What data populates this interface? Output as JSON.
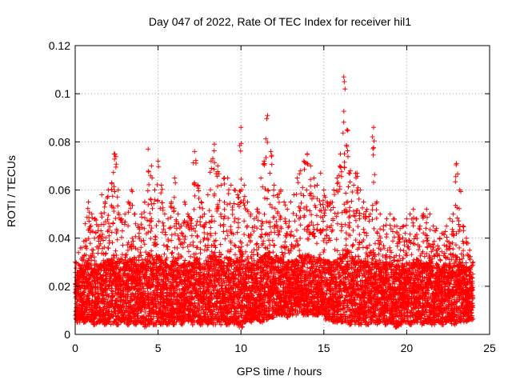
{
  "chart_data": {
    "type": "scatter",
    "title": "Day 047 of 2022, Rate Of TEC Index for receiver hil1",
    "xlabel": "GPS time / hours",
    "ylabel": "ROTI / TECUs",
    "xlim": [
      0,
      25
    ],
    "ylim": [
      0,
      0.12
    ],
    "x_ticks": [
      0,
      5,
      10,
      15,
      20,
      25
    ],
    "x_tick_labels": [
      "0",
      "5",
      "10",
      "15",
      "20",
      "25"
    ],
    "y_ticks": [
      0,
      0.02,
      0.04,
      0.06,
      0.08,
      0.1,
      0.12
    ],
    "y_tick_labels": [
      "0",
      "0.02",
      "0.04",
      "0.06",
      "0.08",
      "0.1",
      "0.12"
    ],
    "grid": true,
    "marker": "+",
    "series": [
      {
        "name": "ROTI",
        "color": "#ff0000",
        "x": [
          0.0,
          0.2,
          0.4,
          0.6,
          0.8,
          1.0,
          1.2,
          1.4,
          1.6,
          1.8,
          2.0,
          2.2,
          2.4,
          2.6,
          2.8,
          3.0,
          3.2,
          3.4,
          3.6,
          3.8,
          4.0,
          4.2,
          4.4,
          4.6,
          4.8,
          5.0,
          5.2,
          5.4,
          5.6,
          5.8,
          6.0,
          6.2,
          6.4,
          6.6,
          6.8,
          7.0,
          7.2,
          7.4,
          7.6,
          7.8,
          8.0,
          8.2,
          8.4,
          8.6,
          8.8,
          9.0,
          9.2,
          9.4,
          9.6,
          9.8,
          10.0,
          10.2,
          10.4,
          10.6,
          10.8,
          11.0,
          11.2,
          11.4,
          11.6,
          11.8,
          12.0,
          12.2,
          12.4,
          12.6,
          12.8,
          13.0,
          13.2,
          13.4,
          13.6,
          13.8,
          14.0,
          14.2,
          14.4,
          14.6,
          14.8,
          15.0,
          15.2,
          15.4,
          15.6,
          15.8,
          16.0,
          16.2,
          16.4,
          16.6,
          16.8,
          17.0,
          17.2,
          17.4,
          17.6,
          17.8,
          18.0,
          18.2,
          18.4,
          18.6,
          18.8,
          19.0,
          19.2,
          19.4,
          19.6,
          19.8,
          20.0,
          20.2,
          20.4,
          20.6,
          20.8,
          21.0,
          21.2,
          21.4,
          21.6,
          21.8,
          22.0,
          22.2,
          22.4,
          22.6,
          22.8,
          23.0,
          23.2,
          23.4,
          23.6,
          23.8,
          24.0
        ],
        "envelope_max": [
          0.03,
          0.034,
          0.036,
          0.046,
          0.055,
          0.05,
          0.048,
          0.045,
          0.058,
          0.055,
          0.06,
          0.063,
          0.075,
          0.06,
          0.048,
          0.05,
          0.055,
          0.06,
          0.05,
          0.045,
          0.05,
          0.055,
          0.077,
          0.07,
          0.06,
          0.072,
          0.062,
          0.05,
          0.048,
          0.055,
          0.065,
          0.05,
          0.045,
          0.055,
          0.05,
          0.048,
          0.076,
          0.062,
          0.055,
          0.05,
          0.058,
          0.072,
          0.079,
          0.07,
          0.062,
          0.065,
          0.065,
          0.062,
          0.06,
          0.058,
          0.086,
          0.062,
          0.055,
          0.05,
          0.048,
          0.052,
          0.065,
          0.072,
          0.091,
          0.076,
          0.062,
          0.058,
          0.06,
          0.055,
          0.052,
          0.055,
          0.058,
          0.065,
          0.068,
          0.072,
          0.075,
          0.07,
          0.065,
          0.062,
          0.067,
          0.06,
          0.055,
          0.055,
          0.06,
          0.065,
          0.075,
          0.107,
          0.085,
          0.068,
          0.062,
          0.067,
          0.06,
          0.055,
          0.052,
          0.05,
          0.086,
          0.055,
          0.05,
          0.045,
          0.048,
          0.05,
          0.048,
          0.045,
          0.044,
          0.045,
          0.048,
          0.05,
          0.052,
          0.048,
          0.045,
          0.05,
          0.052,
          0.05,
          0.045,
          0.044,
          0.04,
          0.042,
          0.045,
          0.048,
          0.05,
          0.071,
          0.06,
          0.045,
          0.04,
          0.035,
          0.03
        ],
        "envelope_min": [
          0.006,
          0.005,
          0.006,
          0.005,
          0.006,
          0.005,
          0.004,
          0.005,
          0.005,
          0.004,
          0.005,
          0.004,
          0.005,
          0.004,
          0.005,
          0.005,
          0.004,
          0.005,
          0.004,
          0.005,
          0.004,
          0.003,
          0.004,
          0.005,
          0.004,
          0.005,
          0.004,
          0.005,
          0.004,
          0.005,
          0.004,
          0.005,
          0.004,
          0.005,
          0.005,
          0.004,
          0.005,
          0.005,
          0.004,
          0.005,
          0.004,
          0.005,
          0.004,
          0.005,
          0.004,
          0.005,
          0.004,
          0.005,
          0.004,
          0.004,
          0.003,
          0.005,
          0.006,
          0.005,
          0.006,
          0.006,
          0.005,
          0.006,
          0.006,
          0.007,
          0.007,
          0.008,
          0.008,
          0.008,
          0.007,
          0.008,
          0.008,
          0.008,
          0.009,
          0.008,
          0.008,
          0.009,
          0.008,
          0.008,
          0.009,
          0.008,
          0.006,
          0.006,
          0.005,
          0.005,
          0.005,
          0.005,
          0.004,
          0.004,
          0.004,
          0.005,
          0.004,
          0.005,
          0.004,
          0.005,
          0.005,
          0.004,
          0.005,
          0.005,
          0.004,
          0.005,
          0.004,
          0.003,
          0.004,
          0.005,
          0.005,
          0.004,
          0.005,
          0.005,
          0.005,
          0.004,
          0.005,
          0.005,
          0.004,
          0.005,
          0.005,
          0.004,
          0.005,
          0.005,
          0.004,
          0.004,
          0.005,
          0.005,
          0.005,
          0.006,
          0.006
        ],
        "typical_level": 0.018
      }
    ]
  }
}
